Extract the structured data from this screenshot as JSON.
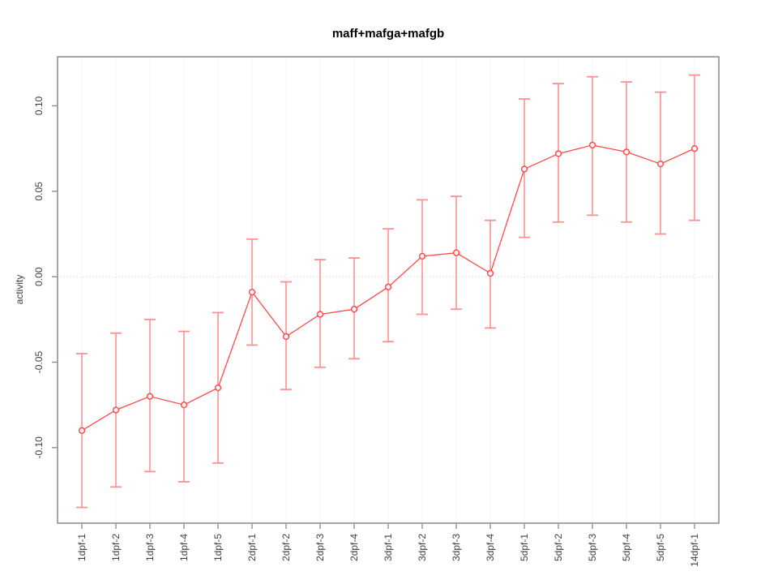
{
  "chart_data": {
    "type": "line",
    "title": "maff+mafga+mafgb",
    "xlabel": "",
    "ylabel": "activity",
    "legend_position": "none",
    "categories": [
      "1dpf-1",
      "1dpf-2",
      "1dpf-3",
      "1dpf-4",
      "1dpf-5",
      "2dpf-1",
      "2dpf-2",
      "2dpf-3",
      "2dpf-4",
      "3dpf-1",
      "3dpf-2",
      "3dpf-3",
      "3dpf-4",
      "5dpf-1",
      "5dpf-2",
      "5dpf-3",
      "5dpf-4",
      "5dpf-5",
      "14dpf-1"
    ],
    "series": [
      {
        "name": "activity",
        "values": [
          -0.09,
          -0.078,
          -0.07,
          -0.075,
          -0.065,
          -0.009,
          -0.035,
          -0.022,
          -0.019,
          -0.006,
          0.012,
          0.014,
          0.002,
          0.063,
          0.072,
          0.077,
          0.073,
          0.066,
          0.075
        ],
        "error_low": [
          -0.135,
          -0.123,
          -0.114,
          -0.12,
          -0.109,
          -0.04,
          -0.066,
          -0.053,
          -0.048,
          -0.038,
          -0.022,
          -0.019,
          -0.03,
          0.023,
          0.032,
          0.036,
          0.032,
          0.025,
          0.033
        ],
        "error_high": [
          -0.045,
          -0.033,
          -0.025,
          -0.032,
          -0.021,
          0.022,
          -0.003,
          0.01,
          0.011,
          0.028,
          0.045,
          0.047,
          0.033,
          0.104,
          0.113,
          0.117,
          0.114,
          0.108,
          0.118
        ]
      }
    ],
    "ylim": [
      -0.1442,
      0.1287
    ],
    "yticks": {
      "values": [
        -0.1,
        -0.05,
        0.0,
        0.05,
        0.1
      ],
      "labels": [
        "-0.10",
        "-0.05",
        "0.00",
        "0.05",
        "0.10"
      ]
    },
    "grid": {
      "vertical_dotted_per_category": true,
      "horizontal_dotted_at": 0,
      "style": "dotted"
    },
    "marker": "open-circle",
    "colors": {
      "background": "#ffffff",
      "point_line": "#ff4a4a",
      "error_bar": "#ff9090",
      "grid": "#d8d8d8",
      "axis": "#8f8f8f",
      "tick_text": "#404040",
      "title_text": "#000000"
    }
  }
}
